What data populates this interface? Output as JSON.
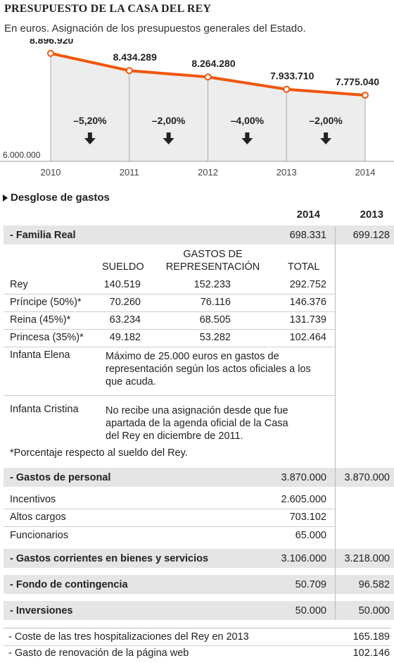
{
  "header": {
    "title": "PRESUPUESTO DE LA CASA DEL REY",
    "subtitle": "En euros. Asignación de los presupuestos generales del Estado."
  },
  "colors": {
    "line": "#f0560a",
    "fill": "#ededed",
    "band": "#e5e5e5"
  },
  "chart_data": {
    "type": "line",
    "x": [
      2010,
      2011,
      2012,
      2013,
      2014
    ],
    "values": [
      8896920,
      8434289,
      8264280,
      7933710,
      7775040
    ],
    "value_labels": [
      "8.896.920",
      "8.434.289",
      "8.264.280",
      "7.933.710",
      "7.775.040"
    ],
    "x_tick_labels": [
      "2010",
      "2011",
      "2012",
      "2013",
      "2014"
    ],
    "y_min_label": "6.000.000",
    "ylim": [
      6000000,
      9100000
    ],
    "changes": [
      "–5,20%",
      "–2,00%",
      "–4,00%",
      "–2,00%"
    ],
    "change_icon": "arrow-down-icon"
  },
  "breakdown": {
    "title": "Desglose de gastos",
    "year_headers": [
      "2014",
      "2013"
    ],
    "familia_real": {
      "label": "- Familia Real",
      "v2014": "698.331",
      "v2013": "699.128",
      "col_headers": {
        "sueldo": "SUELDO",
        "gastos1": "GASTOS DE",
        "gastos2": "REPRESENTACIÓN",
        "total": "TOTAL"
      },
      "rows": [
        {
          "name": "Rey",
          "sueldo": "140.519",
          "gastos": "152.233",
          "total": "292.752"
        },
        {
          "name": "Príncipe (50%)*",
          "sueldo": "70.260",
          "gastos": "76.116",
          "total": "146.376"
        },
        {
          "name": "Reina (45%)*",
          "sueldo": "63.234",
          "gastos": "68.505",
          "total": "131.739"
        },
        {
          "name": "Princesa (35%)*",
          "sueldo": "49.182",
          "gastos": "53.282",
          "total": "102.464"
        }
      ],
      "elena": {
        "name": "Infanta Elena",
        "lines": [
          "Máximo de 25.000 euros en gastos de",
          "representación según los actos oficiales a los",
          "que acuda."
        ]
      },
      "cristina": {
        "name": "Infanta Cristina",
        "lines": [
          "No recibe una asignación desde que fue",
          "apartada de la agenda oficial de la Casa",
          "del Rey en diciembre de 2011."
        ]
      },
      "footnote": "*Porcentaje respecto al sueldo del Rey."
    },
    "personal": {
      "label": "- Gastos de personal",
      "v2014": "3.870.000",
      "v2013": "3.870.000",
      "items": [
        {
          "name": "Incentivos",
          "value": "2.605.000"
        },
        {
          "name": "Altos cargos",
          "value": "703.102"
        },
        {
          "name": "Funcionarios",
          "value": "65.000"
        }
      ]
    },
    "corrientes": {
      "label": "- Gastos corrientes en bienes y servicios",
      "v2014": "3.106.000",
      "v2013": "3.218.000"
    },
    "contingencia": {
      "label": "- Fondo de contingencia",
      "v2014": "50.709",
      "v2013": "96.582"
    },
    "inversiones": {
      "label": "- Inversiones",
      "v2014": "50.000",
      "v2013": "50.000"
    },
    "extras": [
      {
        "label": "- Coste de las tres hospitalizaciones del Rey en 2013",
        "value": "165.189"
      },
      {
        "label": "- Gasto de renovación de la página web",
        "value": "102.146"
      }
    ]
  }
}
